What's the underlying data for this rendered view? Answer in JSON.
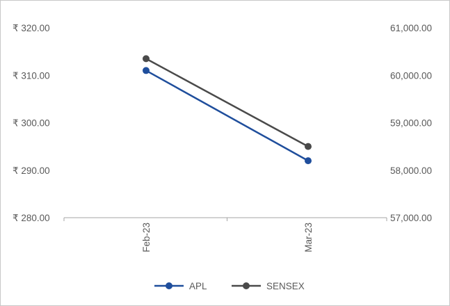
{
  "chart_data": {
    "type": "line",
    "categories": [
      "Feb-23",
      "Mar-23"
    ],
    "series": [
      {
        "name": "APL",
        "axis": "left",
        "values": [
          311.0,
          292.0
        ],
        "color": "#1f4e9c"
      },
      {
        "name": "SENSEX",
        "axis": "right",
        "values": [
          60350,
          58500
        ],
        "color": "#4a4a4a"
      }
    ],
    "left_axis": {
      "ylim": [
        280,
        320
      ],
      "ticks": [
        320,
        310,
        300,
        290,
        280
      ],
      "tick_labels": [
        "₹ 320.00",
        "₹ 310.00",
        "₹ 300.00",
        "₹ 290.00",
        "₹ 280.00"
      ]
    },
    "right_axis": {
      "ylim": [
        57000,
        61000
      ],
      "ticks": [
        61000,
        60000,
        59000,
        58000,
        57000
      ],
      "tick_labels": [
        "61,000.00",
        "60,000.00",
        "59,000.00",
        "58,000.00",
        "57,000.00"
      ]
    },
    "title": "",
    "xlabel": "",
    "grid": false,
    "legend_position": "bottom"
  }
}
